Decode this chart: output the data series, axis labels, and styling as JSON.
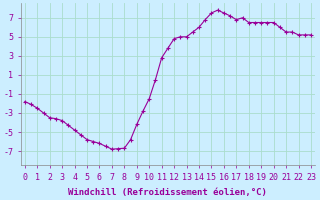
{
  "x": [
    0.0,
    0.5,
    1.0,
    1.5,
    2.0,
    2.5,
    3.0,
    3.5,
    4.0,
    4.5,
    5.0,
    5.5,
    6.0,
    6.5,
    7.0,
    7.5,
    8.0,
    8.5,
    9.0,
    9.5,
    10.0,
    10.5,
    11.0,
    11.5,
    12.0,
    12.5,
    13.0,
    13.5,
    14.0,
    14.5,
    15.0,
    15.5,
    16.0,
    16.5,
    17.0,
    17.5,
    18.0,
    18.5,
    19.0,
    19.5,
    20.0,
    20.5,
    21.0,
    21.5,
    22.0,
    22.5,
    23.0
  ],
  "y": [
    -1.8,
    -2.1,
    -2.5,
    -3.0,
    -3.5,
    -3.6,
    -3.8,
    -4.3,
    -4.8,
    -5.3,
    -5.8,
    -6.0,
    -6.2,
    -6.5,
    -6.8,
    -6.75,
    -6.7,
    -5.8,
    -4.2,
    -2.8,
    -1.5,
    0.5,
    2.8,
    3.8,
    4.8,
    5.0,
    5.0,
    5.5,
    6.0,
    6.8,
    7.5,
    7.8,
    7.5,
    7.2,
    6.8,
    7.0,
    6.5,
    6.5,
    6.5,
    6.5,
    6.5,
    6.0,
    5.5,
    5.5,
    5.2,
    5.2,
    5.2
  ],
  "line_color": "#990099",
  "marker": "+",
  "marker_size": 3,
  "marker_lw": 0.8,
  "bg_color": "#cceeff",
  "grid_color": "#aaddcc",
  "xlabel": "Windchill (Refroidissement éolien,°C)",
  "xlabel_fontsize": 6.5,
  "tick_fontsize": 6.0,
  "ylim": [
    -8.5,
    8.5
  ],
  "xlim": [
    -0.3,
    23.3
  ],
  "yticks": [
    -7,
    -5,
    -3,
    -1,
    1,
    3,
    5,
    7
  ],
  "xticks": [
    0,
    1,
    2,
    3,
    4,
    5,
    6,
    7,
    8,
    9,
    10,
    11,
    12,
    13,
    14,
    15,
    16,
    17,
    18,
    19,
    20,
    21,
    22,
    23
  ]
}
